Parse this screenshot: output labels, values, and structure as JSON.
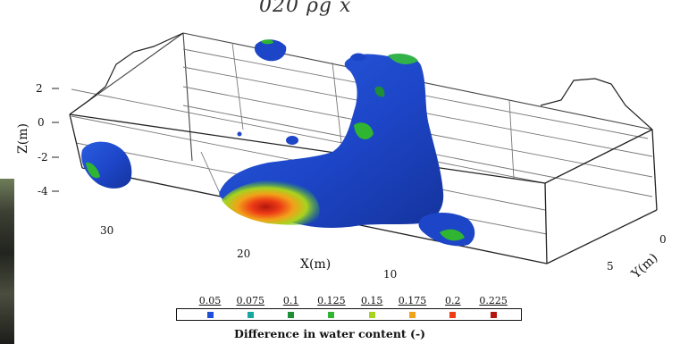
{
  "title_fragment": "020 ρg x",
  "axes": {
    "z_label": "Z(m)",
    "x_label": "X(m)",
    "y_label": "Y(m)",
    "z_ticks": [
      "2",
      "0",
      "-2",
      "-4"
    ],
    "x_ticks": [
      "30",
      "20",
      "10"
    ],
    "y_ticks": [
      "0",
      "5"
    ]
  },
  "colorbar": {
    "title": "Difference in water content (-)",
    "ticks": [
      {
        "label": "0.05",
        "color": "#1f4fd6"
      },
      {
        "label": "0.075",
        "color": "#16a8a0"
      },
      {
        "label": "0.1",
        "color": "#1e8f36"
      },
      {
        "label": "0.125",
        "color": "#2fb531"
      },
      {
        "label": "0.15",
        "color": "#a7d31f"
      },
      {
        "label": "0.175",
        "color": "#f2a11a"
      },
      {
        "label": "0.2",
        "color": "#ee3d16"
      },
      {
        "label": "0.225",
        "color": "#b3150d"
      }
    ]
  },
  "colors": {
    "blob_main": "#1d45c7",
    "blob_dark": "#14339c",
    "green": "#33b24a",
    "box": "#222222",
    "grid": "#555555"
  }
}
